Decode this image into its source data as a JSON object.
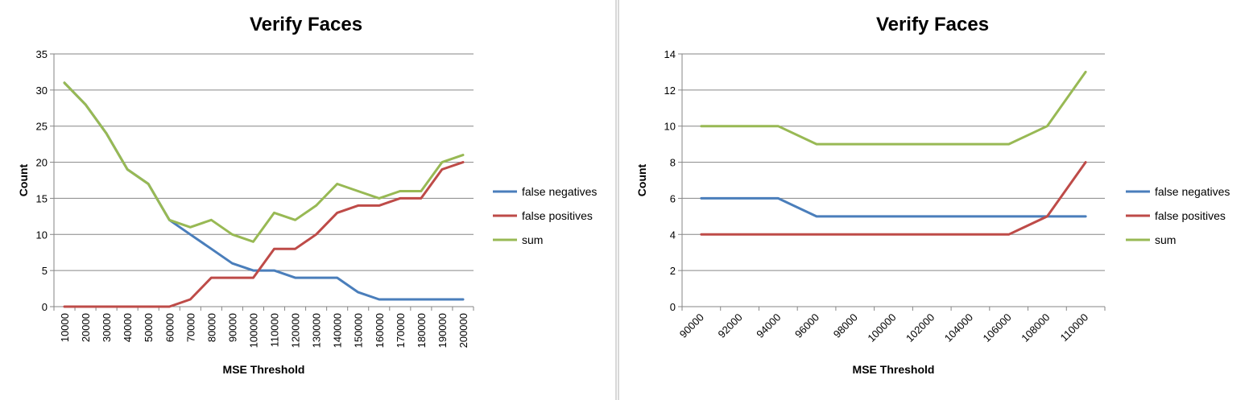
{
  "colors": {
    "false_negatives": "#4a7ebb",
    "false_positives": "#be4b48",
    "sum": "#98b954",
    "divider": "#b0b0b0"
  },
  "chart_data": [
    {
      "type": "line",
      "title": "Verify Faces",
      "xlabel": "MSE Threshold",
      "ylabel": "Count",
      "ylim": [
        0,
        35
      ],
      "yticks": [
        0,
        5,
        10,
        15,
        20,
        25,
        30,
        35
      ],
      "grid": true,
      "legend": "right",
      "x": [
        "10000",
        "20000",
        "30000",
        "40000",
        "50000",
        "60000",
        "70000",
        "80000",
        "90000",
        "100000",
        "110000",
        "120000",
        "130000",
        "140000",
        "150000",
        "160000",
        "170000",
        "180000",
        "190000",
        "200000"
      ],
      "series": [
        {
          "name": "false negatives",
          "color_key": "false_negatives",
          "values": [
            31,
            28,
            24,
            19,
            17,
            12,
            10,
            8,
            6,
            5,
            5,
            4,
            4,
            4,
            2,
            1,
            1,
            1,
            1,
            1
          ]
        },
        {
          "name": "false positives",
          "color_key": "false_positives",
          "values": [
            0,
            0,
            0,
            0,
            0,
            0,
            1,
            4,
            4,
            4,
            8,
            8,
            10,
            13,
            14,
            14,
            15,
            15,
            19,
            20
          ]
        },
        {
          "name": "sum",
          "color_key": "sum",
          "values": [
            31,
            28,
            24,
            19,
            17,
            12,
            11,
            12,
            10,
            9,
            13,
            12,
            14,
            17,
            16,
            15,
            16,
            16,
            20,
            21
          ]
        }
      ]
    },
    {
      "type": "line",
      "title": "Verify Faces",
      "xlabel": "MSE Threshold",
      "ylabel": "Count",
      "ylim": [
        0,
        14
      ],
      "yticks": [
        0,
        2,
        4,
        6,
        8,
        10,
        12,
        14
      ],
      "grid": true,
      "legend": "right",
      "x": [
        "90000",
        "92000",
        "94000",
        "96000",
        "98000",
        "100000",
        "102000",
        "104000",
        "106000",
        "108000",
        "110000"
      ],
      "series": [
        {
          "name": "false negatives",
          "color_key": "false_negatives",
          "values": [
            6,
            6,
            6,
            5,
            5,
            5,
            5,
            5,
            5,
            5,
            5
          ]
        },
        {
          "name": "false positives",
          "color_key": "false_positives",
          "values": [
            4,
            4,
            4,
            4,
            4,
            4,
            4,
            4,
            4,
            5,
            8
          ]
        },
        {
          "name": "sum",
          "color_key": "sum",
          "values": [
            10,
            10,
            10,
            9,
            9,
            9,
            9,
            9,
            9,
            10,
            13
          ]
        }
      ]
    }
  ]
}
